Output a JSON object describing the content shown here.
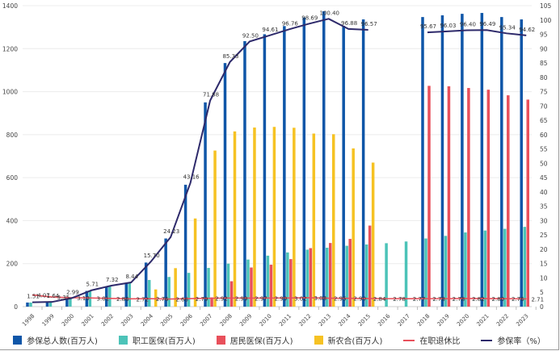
{
  "chart_data": {
    "type": "bar+line",
    "categories": [
      "1998",
      "1999",
      "2000",
      "2001",
      "2002",
      "2003",
      "2004",
      "2005",
      "2006",
      "2007",
      "2008",
      "2009",
      "2010",
      "2011",
      "2012",
      "2013",
      "2014",
      "2015",
      "2016",
      "2017",
      "2018",
      "2019",
      "2020",
      "2021",
      "2022",
      "2023"
    ],
    "left_axis": {
      "ylim": [
        0,
        1400
      ],
      "ticks": [
        0,
        200,
        400,
        600,
        800,
        1000,
        1200,
        1400
      ]
    },
    "right_axis": {
      "ylim": [
        0,
        105
      ],
      "ticks": [
        0,
        5,
        10,
        15,
        20,
        25,
        30,
        35,
        40,
        45,
        50,
        55,
        60,
        65,
        70,
        75,
        80,
        85,
        90,
        95,
        100,
        105
      ]
    },
    "grid": true,
    "legend_position": "bottom",
    "bar_series": [
      {
        "name": "参保总人数(百万人)",
        "color": "#0f56a8",
        "values": [
          19,
          21,
          38,
          73,
          94,
          109,
          205,
          317,
          567,
          950,
          1133,
          1235,
          1267,
          1305,
          1345,
          1374,
          1306,
          1336,
          null,
          null,
          1347,
          1355,
          1362,
          1366,
          1347,
          1336
        ]
      },
      {
        "name": "职工医保(百万人)",
        "color": "#4cc3b8",
        "values": [
          19,
          21,
          38,
          73,
          94,
          109,
          124,
          138,
          157,
          180,
          200,
          219,
          237,
          252,
          265,
          274,
          283,
          289,
          295,
          303,
          317,
          329,
          345,
          354,
          362,
          371
        ]
      },
      {
        "name": "居民医保(百万人)",
        "color": "#e8505b",
        "values": [
          null,
          null,
          null,
          null,
          null,
          null,
          null,
          null,
          null,
          43,
          118,
          182,
          195,
          221,
          272,
          296,
          315,
          377,
          null,
          null,
          1027,
          1025,
          1017,
          1009,
          983,
          963
        ]
      },
      {
        "name": "新农合(百万人)",
        "color": "#f6c223",
        "values": [
          null,
          null,
          null,
          null,
          null,
          null,
          80,
          179,
          410,
          726,
          815,
          833,
          836,
          832,
          805,
          802,
          736,
          670,
          null,
          null,
          null,
          null,
          null,
          null,
          null,
          null
        ]
      }
    ],
    "line_series": [
      {
        "name": "在职退休比",
        "color": "#e8505b",
        "axis": "right",
        "values": [
          4.07,
          3.35,
          3.1,
          3.01,
          2.86,
          2.72,
          2.76,
          2.66,
          2.79,
          2.92,
          2.99,
          2.97,
          2.99,
          3.02,
          3.08,
          2.95,
          2.9,
          2.84,
          2.78,
          2.77,
          2.78,
          2.78,
          2.82,
          2.8,
          2.76,
          2.71
        ],
        "labels": [
          "4.07",
          "3.35",
          "3.10",
          "3.01",
          "2.86",
          "2.72",
          "2.76",
          "2.66",
          "2.79",
          "2.92",
          "2.99",
          "2.97",
          "2.99",
          "3.02",
          "3.08",
          "2.95",
          "2.90",
          "2.84",
          "2.78",
          "2.77",
          "2.78",
          "2.78",
          "2.82",
          "2.80",
          "2.76",
          "2.71"
        ]
      },
      {
        "name": "参保率（%）",
        "color": "#2e2a6b",
        "axis": "right",
        "values": [
          1.51,
          1.64,
          2.99,
          5.71,
          7.32,
          8.44,
          15.7,
          24.23,
          43.16,
          71.88,
          85.33,
          92.5,
          94.61,
          96.76,
          98.69,
          100.4,
          96.88,
          96.57,
          null,
          null,
          95.67,
          96.03,
          96.4,
          96.49,
          95.34,
          94.62
        ],
        "labels": [
          "1.51",
          "1.64",
          "2.99",
          "5.71",
          "7.32",
          "8.44",
          "15.70",
          "24.23",
          "43.16",
          "71.88",
          "85.33",
          "92.50",
          "94.61",
          "96.76",
          "98.69",
          "100.40",
          "96.88",
          "96.57",
          null,
          null,
          "95.67",
          "96.03",
          "96.40",
          "96.49",
          "95.34",
          "94.62"
        ]
      }
    ]
  }
}
